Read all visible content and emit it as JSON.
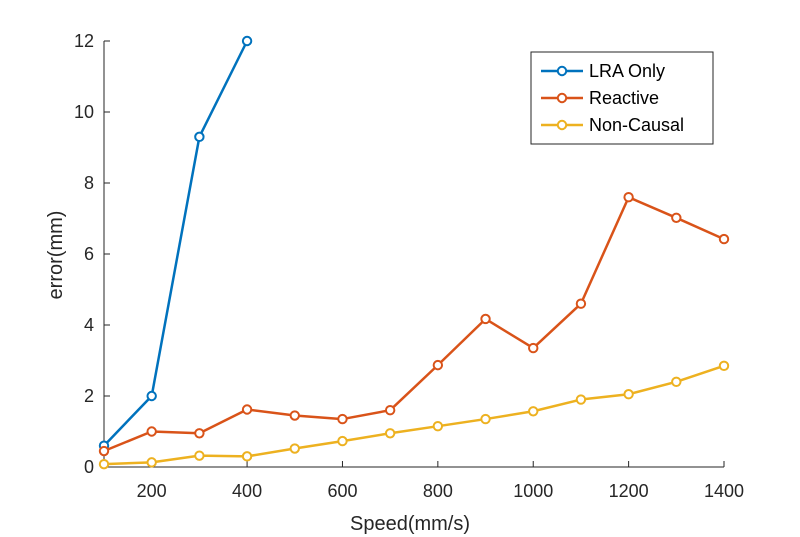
{
  "chart_data": {
    "type": "line",
    "title": "",
    "xlabel": "Speed(mm/s)",
    "ylabel": "error(mm)",
    "xlim": [
      100,
      1400
    ],
    "ylim": [
      0,
      12
    ],
    "xticks": [
      200,
      400,
      600,
      800,
      1000,
      1200,
      1400
    ],
    "yticks": [
      0,
      2,
      4,
      6,
      8,
      10,
      12
    ],
    "grid": false,
    "legend_position": "top-right",
    "series": [
      {
        "name": "LRA Only",
        "color": "#0072BD",
        "marker": "circle",
        "x": [
          100,
          200,
          300,
          400
        ],
        "y": [
          0.6,
          2.0,
          9.3,
          12.0
        ]
      },
      {
        "name": "Reactive",
        "color": "#D95319",
        "marker": "circle",
        "x": [
          100,
          200,
          300,
          400,
          500,
          600,
          700,
          800,
          900,
          1000,
          1100,
          1200,
          1300,
          1400
        ],
        "y": [
          0.45,
          1.0,
          0.95,
          1.62,
          1.45,
          1.35,
          1.6,
          2.87,
          4.17,
          3.35,
          4.6,
          7.6,
          7.02,
          6.42
        ]
      },
      {
        "name": "Non-Causal",
        "color": "#EDB120",
        "marker": "circle",
        "x": [
          100,
          200,
          300,
          400,
          500,
          600,
          700,
          800,
          900,
          1000,
          1100,
          1200,
          1300,
          1400
        ],
        "y": [
          0.08,
          0.13,
          0.32,
          0.3,
          0.52,
          0.73,
          0.95,
          1.15,
          1.35,
          1.57,
          1.9,
          2.05,
          2.4,
          2.85
        ]
      }
    ]
  }
}
